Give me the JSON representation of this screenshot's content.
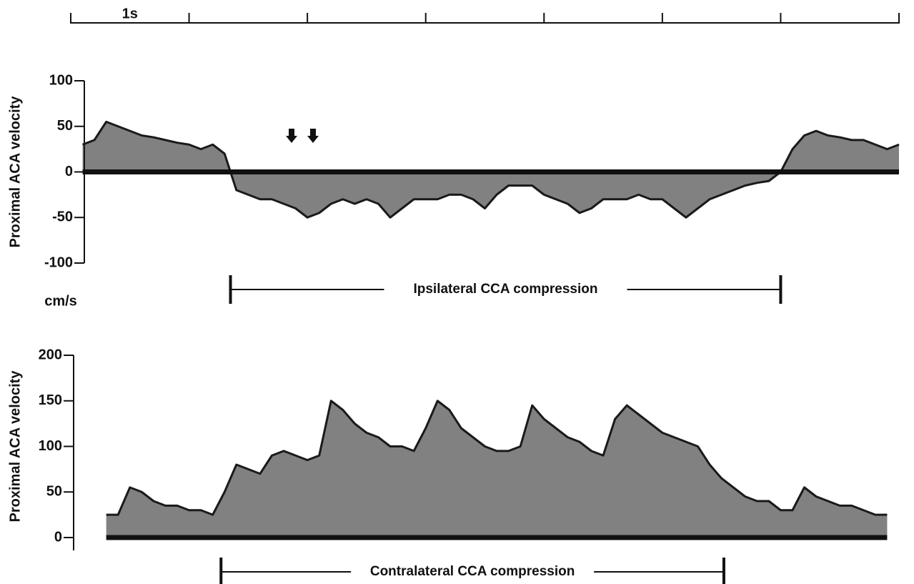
{
  "chart_data": [
    {
      "type": "area",
      "ylabel": "Proximal ACA velocity",
      "unit": "cm/s",
      "time_scale_label": "1s",
      "xlim": [
        0,
        7
      ],
      "xticks": [
        0,
        1,
        2,
        3,
        4,
        5,
        6,
        7
      ],
      "ylim": [
        -100,
        100
      ],
      "yticks": [
        -100,
        -50,
        0,
        50,
        100
      ],
      "color": "#1a1a1a",
      "x": [
        0.1,
        0.2,
        0.3,
        0.4,
        0.5,
        0.6,
        0.7,
        0.8,
        0.9,
        1.0,
        1.1,
        1.2,
        1.3,
        1.4,
        1.5,
        1.6,
        1.7,
        1.8,
        1.9,
        2.0,
        2.1,
        2.2,
        2.3,
        2.4,
        2.5,
        2.6,
        2.7,
        2.8,
        2.9,
        3.0,
        3.1,
        3.2,
        3.3,
        3.4,
        3.5,
        3.6,
        3.7,
        3.8,
        3.9,
        4.0,
        4.1,
        4.2,
        4.3,
        4.4,
        4.5,
        4.6,
        4.7,
        4.8,
        4.9,
        5.0,
        5.1,
        5.2,
        5.3,
        5.4,
        5.5,
        5.6,
        5.7,
        5.8,
        5.9,
        6.0,
        6.1,
        6.2,
        6.3,
        6.4,
        6.5,
        6.6,
        6.7,
        6.8,
        6.9,
        7.0
      ],
      "values": [
        30,
        35,
        55,
        50,
        45,
        40,
        38,
        35,
        32,
        30,
        25,
        30,
        20,
        -20,
        -25,
        -30,
        -30,
        -35,
        -40,
        -50,
        -45,
        -35,
        -30,
        -35,
        -30,
        -35,
        -50,
        -40,
        -30,
        -30,
        -30,
        -25,
        -25,
        -30,
        -40,
        -25,
        -15,
        -15,
        -15,
        -25,
        -30,
        -35,
        -45,
        -40,
        -30,
        -30,
        -30,
        -25,
        -30,
        -30,
        -40,
        -50,
        -40,
        -30,
        -25,
        -20,
        -15,
        -12,
        -10,
        0,
        25,
        40,
        45,
        40,
        38,
        35,
        35,
        30,
        25,
        30
      ],
      "compression": {
        "label": "Ipsilateral CCA compression",
        "start": 1.35,
        "end": 6.0
      }
    },
    {
      "type": "area",
      "ylabel": "Proximal ACA velocity",
      "xlim": [
        0,
        7
      ],
      "ylim": [
        0,
        200
      ],
      "yticks": [
        0,
        50,
        100,
        150,
        200
      ],
      "color": "#1a1a1a",
      "x": [
        0.3,
        0.4,
        0.5,
        0.6,
        0.7,
        0.8,
        0.9,
        1.0,
        1.1,
        1.2,
        1.3,
        1.4,
        1.5,
        1.6,
        1.7,
        1.8,
        1.9,
        2.0,
        2.1,
        2.2,
        2.3,
        2.4,
        2.5,
        2.6,
        2.7,
        2.8,
        2.9,
        3.0,
        3.1,
        3.2,
        3.3,
        3.4,
        3.5,
        3.6,
        3.7,
        3.8,
        3.9,
        4.0,
        4.1,
        4.2,
        4.3,
        4.4,
        4.5,
        4.6,
        4.7,
        4.8,
        4.9,
        5.0,
        5.1,
        5.2,
        5.3,
        5.4,
        5.5,
        5.6,
        5.7,
        5.8,
        5.9,
        6.0,
        6.1,
        6.2,
        6.3,
        6.4,
        6.5,
        6.6,
        6.7,
        6.8,
        6.9
      ],
      "values": [
        25,
        25,
        55,
        50,
        40,
        35,
        35,
        30,
        30,
        25,
        50,
        80,
        75,
        70,
        90,
        95,
        90,
        85,
        90,
        150,
        140,
        125,
        115,
        110,
        100,
        100,
        95,
        120,
        150,
        140,
        120,
        110,
        100,
        95,
        95,
        100,
        145,
        130,
        120,
        110,
        105,
        95,
        90,
        130,
        145,
        135,
        125,
        115,
        110,
        105,
        100,
        80,
        65,
        55,
        45,
        40,
        40,
        30,
        30,
        55,
        45,
        40,
        35,
        35,
        30,
        25,
        25
      ],
      "compression": {
        "label": "Contralateral CCA compression",
        "start": 1.27,
        "end": 5.52
      }
    }
  ]
}
